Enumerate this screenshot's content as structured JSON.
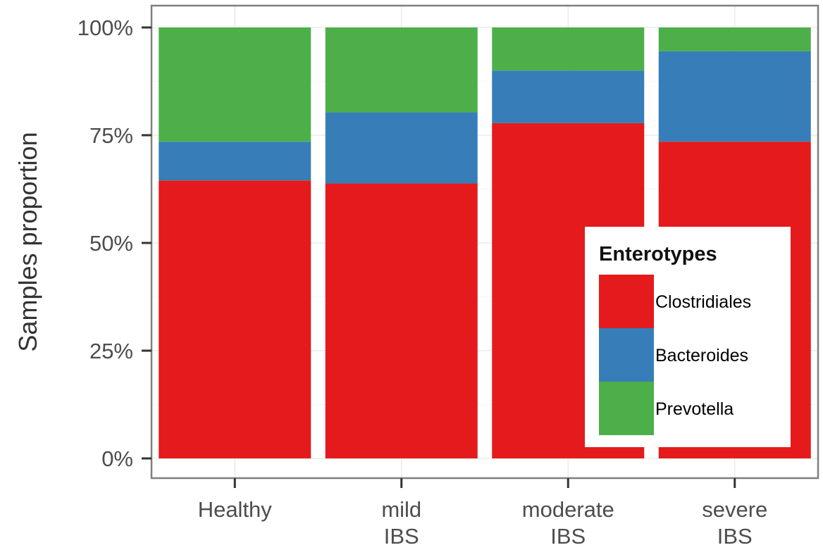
{
  "chart_data": {
    "type": "bar",
    "stacked": true,
    "categories": [
      [
        "Healthy"
      ],
      [
        "mild",
        "IBS"
      ],
      [
        "moderate",
        "IBS"
      ],
      [
        "severe",
        "IBS"
      ]
    ],
    "series": [
      {
        "name": "Clostridiales",
        "color": "#e41a1c",
        "values": [
          0.645,
          0.638,
          0.778,
          0.735
        ]
      },
      {
        "name": "Bacteroides",
        "color": "#377eb8",
        "values": [
          0.09,
          0.165,
          0.122,
          0.21
        ]
      },
      {
        "name": "Prevotella",
        "color": "#4daf4a",
        "values": [
          0.265,
          0.197,
          0.1,
          0.055
        ]
      }
    ],
    "title": "",
    "xlabel": "",
    "ylabel": "Samples proportion",
    "ylim": [
      0,
      1
    ],
    "yticks": [
      0,
      0.25,
      0.5,
      0.75,
      1
    ],
    "ytick_labels": [
      "0%",
      "25%",
      "50%",
      "75%",
      "100%"
    ],
    "grid": true,
    "legend": {
      "title": "Enterotypes",
      "placement": "bottom-right-inside"
    }
  }
}
